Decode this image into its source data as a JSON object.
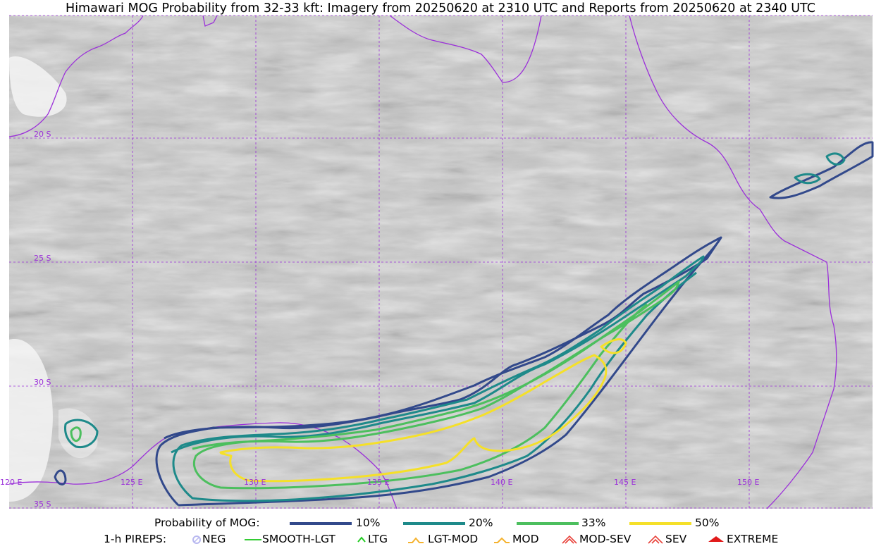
{
  "title": "Himawari MOG Probability from 32-33 kft: Imagery from 20250620 at 2310 UTC and Reports from 20250620 at 2340 UTC",
  "map": {
    "lat_labels": [
      "20 S",
      "25 S",
      "30 S",
      "35 S"
    ],
    "lon_labels": [
      "120 E",
      "125 E",
      "130 E",
      "135 E",
      "140 E",
      "145 E",
      "150 E"
    ],
    "gridline_color": "#9b30d9",
    "coast_color": "#9b30d9"
  },
  "legend": {
    "prob_label": "Probability of MOG:",
    "prob_items": [
      {
        "label": "10%",
        "color": "#32498b"
      },
      {
        "label": "20%",
        "color": "#1e8a8a"
      },
      {
        "label": "33%",
        "color": "#4cbf5e"
      },
      {
        "label": "50%",
        "color": "#f5e029"
      }
    ],
    "pirep_label": "1-h PIREPS:",
    "pirep_items": [
      {
        "label": "NEG",
        "color": "#b8b8f0",
        "icon": "neg-circle-icon"
      },
      {
        "label": "SMOOTH-LGT",
        "color": "#33cc33",
        "icon": "smooth-line-icon"
      },
      {
        "label": "LTG",
        "color": "#22cc22",
        "icon": "caret-icon"
      },
      {
        "label": "LGT-MOD",
        "color": "#f5b22d",
        "icon": "lgt-mod-icon"
      },
      {
        "label": "MOD",
        "color": "#f5b22d",
        "icon": "mod-caret-icon"
      },
      {
        "label": "MOD-SEV",
        "color": "#e8423a",
        "icon": "mod-sev-icon"
      },
      {
        "label": "SEV",
        "color": "#e8423a",
        "icon": "sev-icon"
      },
      {
        "label": "EXTREME",
        "color": "#e11a1a",
        "icon": "extreme-icon"
      }
    ]
  }
}
